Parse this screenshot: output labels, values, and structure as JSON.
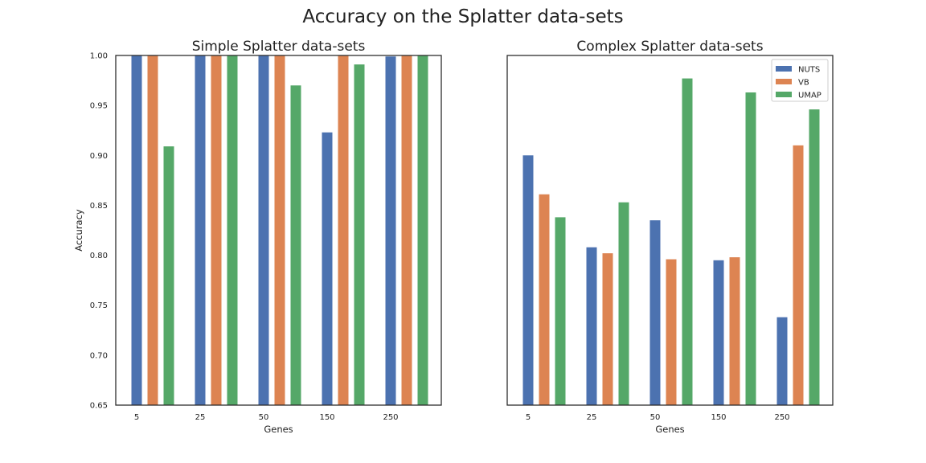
{
  "figure": {
    "title": "Accuracy on the Splatter data-sets"
  },
  "colors": {
    "NUTS": "#4c72b0",
    "VB": "#dd8452",
    "UMAP": "#55a868"
  },
  "chart_data": [
    {
      "type": "bar",
      "title": "Simple Splatter data-sets",
      "xlabel": "Genes",
      "ylabel": "Accuracy",
      "categories": [
        "5",
        "25",
        "50",
        "150",
        "250"
      ],
      "ylim": [
        0.65,
        1.0
      ],
      "yticks": [
        "0.65",
        "0.70",
        "0.75",
        "0.80",
        "0.85",
        "0.90",
        "0.95",
        "1.00"
      ],
      "grid": false,
      "legend": null,
      "series": [
        {
          "name": "NUTS",
          "values": [
            1.0,
            1.0,
            1.0,
            0.923,
            0.999
          ]
        },
        {
          "name": "VB",
          "values": [
            1.0,
            1.0,
            1.0,
            1.0,
            1.0
          ]
        },
        {
          "name": "UMAP",
          "values": [
            0.909,
            1.0,
            0.97,
            0.991,
            1.0
          ]
        }
      ]
    },
    {
      "type": "bar",
      "title": "Complex Splatter data-sets",
      "xlabel": "Genes",
      "ylabel": "",
      "categories": [
        "5",
        "25",
        "50",
        "150",
        "250"
      ],
      "ylim": [
        0.65,
        1.0
      ],
      "yticks": [],
      "grid": false,
      "legend": "top-right",
      "series": [
        {
          "name": "NUTS",
          "values": [
            0.9,
            0.808,
            0.835,
            0.795,
            0.738
          ]
        },
        {
          "name": "VB",
          "values": [
            0.861,
            0.802,
            0.796,
            0.798,
            0.91
          ]
        },
        {
          "name": "UMAP",
          "values": [
            0.838,
            0.853,
            0.977,
            0.963,
            0.946
          ]
        }
      ]
    }
  ]
}
